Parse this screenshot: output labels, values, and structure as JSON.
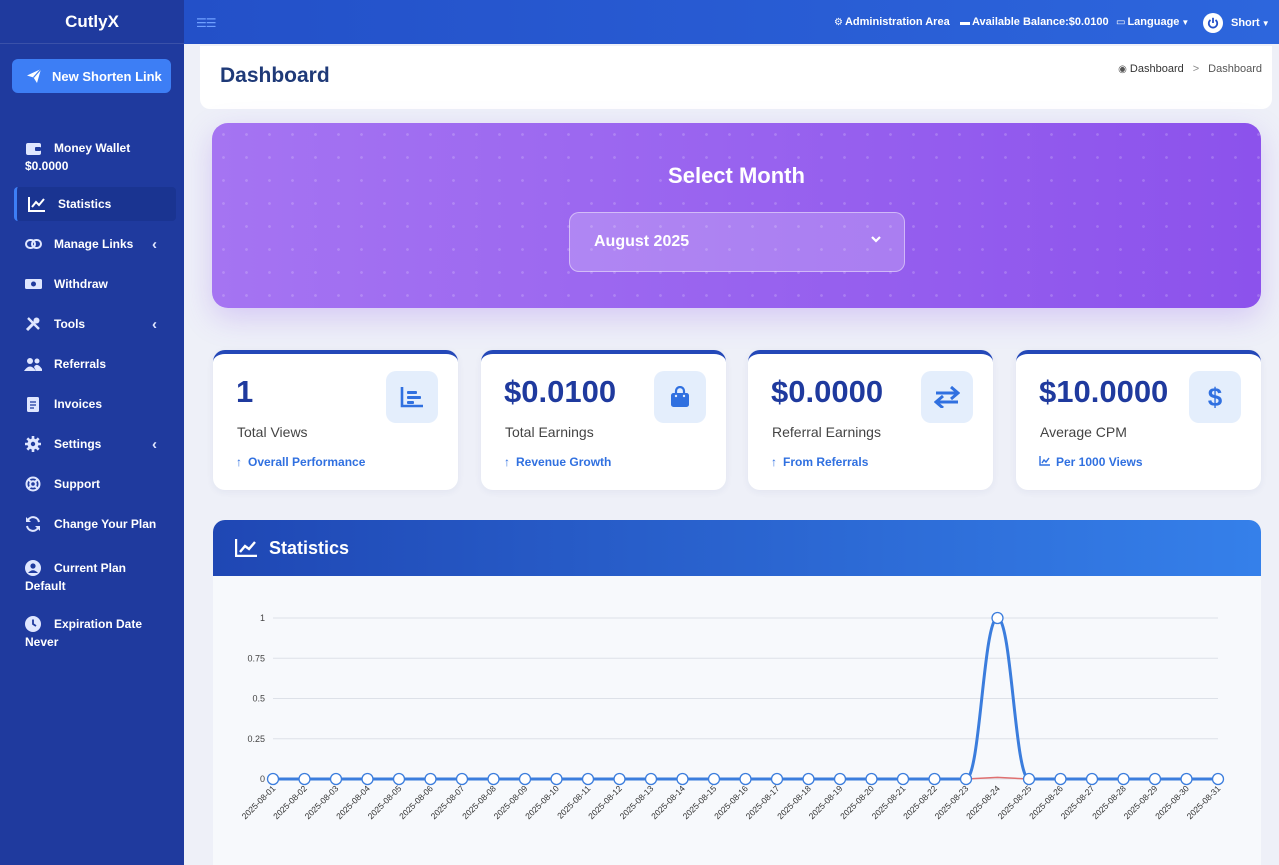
{
  "app": {
    "brand": "CutlyX"
  },
  "sidebar": {
    "new_link_label": "New Shorten Link",
    "wallet": {
      "title": "Money Wallet",
      "value": "$0.0000"
    },
    "items": [
      {
        "label": "Statistics",
        "icon": "chart-line-icon",
        "active": true
      },
      {
        "label": "Manage Links",
        "icon": "link-icon",
        "has_submenu": true
      },
      {
        "label": "Withdraw",
        "icon": "money-icon"
      },
      {
        "label": "Tools",
        "icon": "tools-icon",
        "has_submenu": true
      },
      {
        "label": "Referrals",
        "icon": "users-icon"
      },
      {
        "label": "Invoices",
        "icon": "invoice-icon"
      },
      {
        "label": "Settings",
        "icon": "gear-icon",
        "has_submenu": true
      },
      {
        "label": "Support",
        "icon": "lifebuoy-icon"
      },
      {
        "label": "Change Your Plan",
        "icon": "refresh-icon"
      }
    ],
    "current_plan": {
      "title": "Current Plan",
      "value": "Default"
    },
    "expiration": {
      "title": "Expiration Date",
      "value": "Never"
    }
  },
  "topbar": {
    "admin_label": "Administration Area",
    "balance_label": "Available Balance:$0.0100",
    "language_label": "Language",
    "user_label": "Short"
  },
  "page": {
    "title": "Dashboard",
    "breadcrumb": [
      "Dashboard",
      "Dashboard"
    ]
  },
  "month_selector": {
    "title": "Select Month",
    "selected": "August 2025"
  },
  "stats": [
    {
      "value": "1",
      "label": "Total Views",
      "sub": "Overall Performance",
      "icon": "bar-chart-icon"
    },
    {
      "value": "$0.0100",
      "label": "Total Earnings",
      "sub": "Revenue Growth",
      "icon": "shopping-bag-icon"
    },
    {
      "value": "$0.0000",
      "label": "Referral Earnings",
      "sub": "From Referrals",
      "icon": "exchange-icon"
    },
    {
      "value": "$10.0000",
      "label": "Average CPM",
      "sub": "Per 1000 Views",
      "icon": "dollar-icon"
    }
  ],
  "statistics_panel": {
    "title": "Statistics"
  },
  "colors": {
    "sidebar": "#1f3a9e",
    "accent": "#3d7ef5",
    "purple": "#9560ee",
    "series_views": "#3b7ddd",
    "series_earnings": "#e07070"
  },
  "chart_data": {
    "type": "line",
    "x": [
      "2025-08-01",
      "2025-08-02",
      "2025-08-03",
      "2025-08-04",
      "2025-08-05",
      "2025-08-06",
      "2025-08-07",
      "2025-08-08",
      "2025-08-09",
      "2025-08-10",
      "2025-08-11",
      "2025-08-12",
      "2025-08-13",
      "2025-08-14",
      "2025-08-15",
      "2025-08-16",
      "2025-08-17",
      "2025-08-18",
      "2025-08-19",
      "2025-08-20",
      "2025-08-21",
      "2025-08-22",
      "2025-08-23",
      "2025-08-24",
      "2025-08-25",
      "2025-08-26",
      "2025-08-27",
      "2025-08-28",
      "2025-08-29",
      "2025-08-30",
      "2025-08-31"
    ],
    "series": [
      {
        "values": [
          0,
          0,
          0,
          0,
          0,
          0,
          0,
          0,
          0,
          0,
          0,
          0,
          0,
          0,
          0,
          0,
          0,
          0,
          0,
          0,
          0,
          0,
          0,
          1,
          0,
          0,
          0,
          0,
          0,
          0,
          0
        ]
      },
      {
        "values": [
          0,
          0,
          0,
          0,
          0,
          0,
          0,
          0,
          0,
          0,
          0,
          0,
          0,
          0,
          0,
          0,
          0,
          0,
          0,
          0,
          0,
          0,
          0,
          0.01,
          0,
          0,
          0,
          0,
          0,
          0,
          0
        ]
      }
    ],
    "ylim": [
      0,
      1
    ],
    "yticks": [
      "0",
      "0.25",
      "0.5",
      "0.75",
      "1"
    ],
    "grid": true
  }
}
